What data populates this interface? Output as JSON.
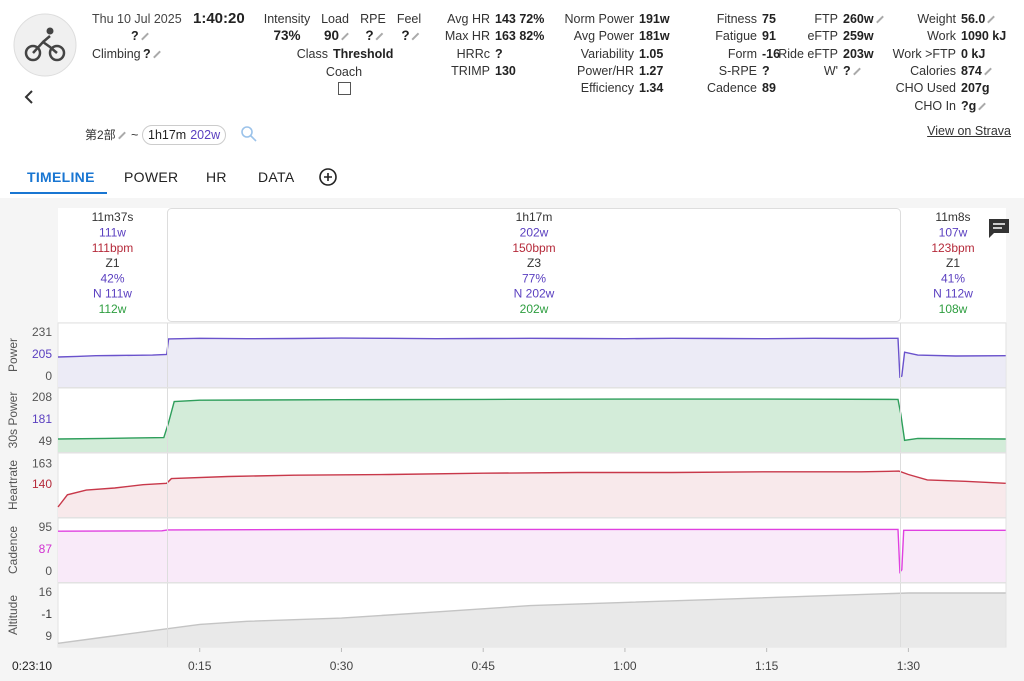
{
  "header": {
    "date": "Thu 10 Jul 2025",
    "duration": "1:40:20",
    "name": "?",
    "climbing_label": "Climbing",
    "climbing": "?"
  },
  "summary": [
    {
      "label": "Intensity",
      "value": "73%"
    },
    {
      "label": "Load",
      "value": "90",
      "editable": true
    },
    {
      "label": "RPE",
      "value": "?",
      "editable": true
    },
    {
      "label": "Feel",
      "value": "?",
      "editable": true
    }
  ],
  "class": {
    "label": "Class",
    "value": "Threshold"
  },
  "coach": "Coach",
  "stats": [
    [
      {
        "label": "Avg HR",
        "value": "143 72%"
      },
      {
        "label": "Max HR",
        "value": "163 82%"
      },
      {
        "label": "HRRc",
        "value": "?"
      },
      {
        "label": "TRIMP",
        "value": "130"
      }
    ],
    [
      {
        "label": "Norm Power",
        "value": "191w"
      },
      {
        "label": "Avg Power",
        "value": "181w"
      },
      {
        "label": "Variability",
        "value": "1.05"
      },
      {
        "label": "Power/HR",
        "value": "1.27"
      },
      {
        "label": "Efficiency",
        "value": "1.34"
      }
    ],
    [
      {
        "label": "Fitness",
        "value": "75"
      },
      {
        "label": "Fatigue",
        "value": "91"
      },
      {
        "label": "Form",
        "value": "-16"
      },
      {
        "label": "S-RPE",
        "value": "?"
      },
      {
        "label": "Cadence",
        "value": "89"
      }
    ],
    [
      {
        "label": "FTP",
        "value": "260w",
        "editable": true
      },
      {
        "label": "eFTP",
        "value": "259w"
      },
      {
        "label": "Ride eFTP",
        "value": "203w"
      },
      {
        "label": "W'",
        "value": "?",
        "editable": true
      }
    ],
    [
      {
        "label": "Weight",
        "value": "56.0",
        "editable": true
      },
      {
        "label": "Work",
        "value": "1090 kJ"
      },
      {
        "label": "Work >FTP",
        "value": "0 kJ"
      },
      {
        "label": "Calories",
        "value": "874",
        "editable": true
      },
      {
        "label": "CHO Used",
        "value": "207g"
      },
      {
        "label": "CHO In",
        "value": "?g",
        "editable": true
      }
    ]
  ],
  "lap": {
    "name": "第2部",
    "separator": "~",
    "duration": "1h17m",
    "power": "202w"
  },
  "strava": "View on Strava",
  "tabs": [
    "TIMELINE",
    "POWER",
    "HR",
    "DATA"
  ],
  "segments": [
    {
      "duration": "11m37s",
      "power": "111w",
      "hr": "111bpm",
      "zone": "Z1",
      "percent": "42%",
      "norm": "N 111w",
      "avg30": "112w"
    },
    {
      "duration": "1h17m",
      "power": "202w",
      "hr": "150bpm",
      "zone": "Z3",
      "percent": "77%",
      "norm": "N 202w",
      "avg30": "202w"
    },
    {
      "duration": "11m8s",
      "power": "107w",
      "hr": "123bpm",
      "zone": "Z1",
      "percent": "41%",
      "norm": "N 112w",
      "avg30": "108w"
    }
  ],
  "cursor_time": "0:23:10",
  "time_axis": {
    "xlim": [
      0,
      100.33
    ],
    "xticks": [
      {
        "value": 15,
        "label": "0:15"
      },
      {
        "value": 30,
        "label": "0:30"
      },
      {
        "value": 45,
        "label": "0:45"
      },
      {
        "value": 60,
        "label": "1:00"
      },
      {
        "value": 75,
        "label": "1:15"
      },
      {
        "value": 90,
        "label": "1:30"
      }
    ]
  },
  "chart_data": [
    {
      "type": "line",
      "y_label": "Power",
      "ylim": [
        0,
        231
      ],
      "yticks": [
        231,
        0
      ],
      "readout": "205",
      "readout_color": "#5a3fc0",
      "color": "#6a52cc",
      "fill": "#ecebf6",
      "x": [
        0,
        2,
        4,
        6,
        8,
        10,
        11.5,
        11.7,
        15,
        20,
        25,
        30,
        35,
        40,
        45,
        50,
        55,
        60,
        65,
        70,
        75,
        80,
        85,
        88.9,
        89.1,
        89.3,
        89.6,
        91,
        95,
        100.3
      ],
      "values": [
        105,
        108,
        112,
        113,
        114,
        115,
        118,
        200,
        203,
        201,
        202,
        204,
        203,
        201,
        202,
        203,
        202,
        201,
        203,
        202,
        201,
        203,
        202,
        203,
        0,
        5,
        130,
        115,
        110,
        112
      ]
    },
    {
      "type": "line",
      "y_label": "30s Power",
      "ylim": [
        49,
        208
      ],
      "yticks": [
        208,
        49
      ],
      "readout": "181",
      "readout_color": "#5a3fc0",
      "color": "#2e9e5b",
      "fill": "#d3ecd9",
      "x": [
        0,
        5,
        11.2,
        11.7,
        12.3,
        15,
        30,
        45,
        60,
        75,
        88.9,
        89.2,
        89.6,
        91,
        100.3
      ],
      "values": [
        60,
        62,
        65,
        120,
        195,
        200,
        202,
        203,
        204,
        204,
        203,
        150,
        55,
        62,
        60
      ]
    },
    {
      "type": "line",
      "y_label": "Heartrate",
      "ylim": [
        100,
        165
      ],
      "yticks": [
        163
      ],
      "readout": "140",
      "readout_color": "#b52a3a",
      "color": "#c8384a",
      "fill": "#f8e9eb",
      "x": [
        0,
        1,
        3,
        6,
        9,
        11.5,
        12,
        18,
        25,
        35,
        45,
        55,
        65,
        75,
        85,
        89,
        90,
        92,
        96,
        100.3
      ],
      "values": [
        100,
        118,
        125,
        128,
        133,
        135,
        142,
        145,
        147,
        148,
        150,
        151,
        151,
        152,
        152,
        153,
        148,
        140,
        138,
        135
      ]
    },
    {
      "type": "line",
      "y_label": "Cadence",
      "ylim": [
        0,
        95
      ],
      "yticks": [
        95,
        0
      ],
      "readout": "87",
      "readout_color": "#d030d0",
      "color": "#e040e0",
      "fill": "#f9eaf9",
      "x": [
        0,
        11,
        11.6,
        30,
        60,
        88.9,
        89.1,
        89.3,
        89.5,
        100.3
      ],
      "values": [
        88,
        89,
        91,
        92,
        92,
        92,
        0,
        5,
        90,
        90
      ]
    },
    {
      "type": "line",
      "y_label": "Altitude",
      "ylim": [
        9,
        16
      ],
      "yticks": [
        16,
        9
      ],
      "readout": "-1",
      "readout_color": "#333333",
      "color": "#c4c4c4",
      "fill": "#e9e9e9",
      "x": [
        0,
        5,
        10,
        15,
        20,
        30,
        40,
        50,
        60,
        70,
        80,
        90,
        100.3
      ],
      "values": [
        8,
        9,
        10,
        11,
        11.5,
        12,
        13,
        14,
        14.5,
        15,
        15.5,
        16,
        16
      ]
    }
  ]
}
